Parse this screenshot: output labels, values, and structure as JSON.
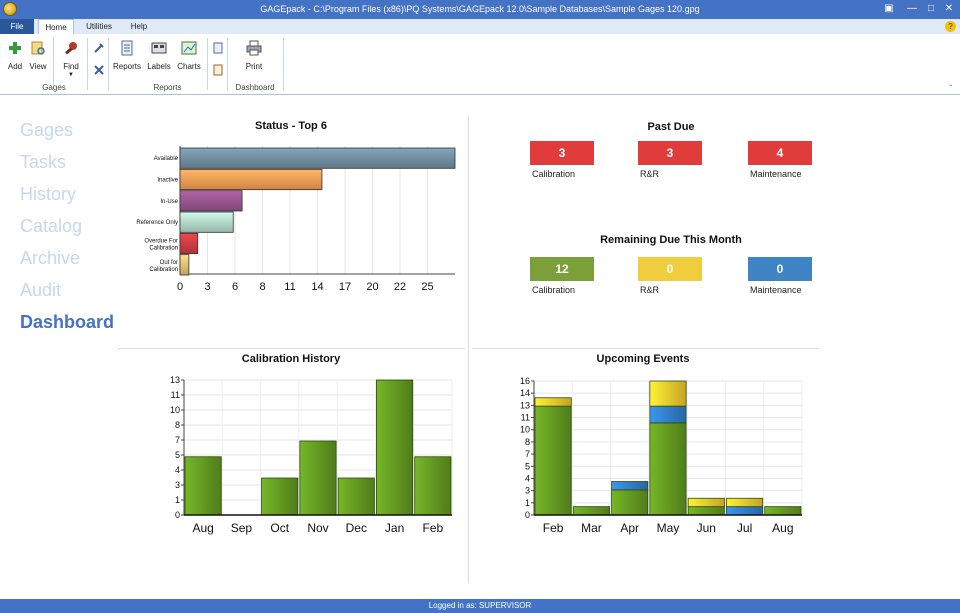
{
  "window": {
    "title": "GAGEpack - C:\\Program Files (x86)\\PQ Systems\\GAGEpack 12.0\\Sample Databases\\Sample Gages 120.gpg"
  },
  "menu": {
    "tabs": [
      "File",
      "Home",
      "Utilities",
      "Help"
    ]
  },
  "ribbon": {
    "add_label": "Add",
    "view_label": "View",
    "find_label": "Find",
    "reports_label": "Reports",
    "labels_label": "Labels",
    "charts_label": "Charts",
    "print_label": "Print",
    "groups": {
      "gages": "Gages",
      "reports": "Reports",
      "dashboard": "Dashboard"
    }
  },
  "nav": {
    "items": [
      "Gages",
      "Tasks",
      "History",
      "Catalog",
      "Archive",
      "Audit",
      "Dashboard"
    ],
    "active": "Dashboard"
  },
  "past_due": {
    "title": "Past Due",
    "tiles": [
      {
        "label": "Calibration",
        "value": "3",
        "color": "#e03c3c"
      },
      {
        "label": "R&R",
        "value": "3",
        "color": "#e03c3c"
      },
      {
        "label": "Maintenance",
        "value": "4",
        "color": "#e03c3c"
      }
    ]
  },
  "remaining_due": {
    "title": "Remaining Due This Month",
    "tiles": [
      {
        "label": "Calibration",
        "value": "12",
        "color": "#7ba03a"
      },
      {
        "label": "R&R",
        "value": "0",
        "color": "#efcd3c"
      },
      {
        "label": "Maintenance",
        "value": "0",
        "color": "#3f84c4"
      }
    ]
  },
  "status_bar": {
    "text": "Logged in as: SUPERVISOR"
  },
  "chart_data": [
    {
      "type": "bar",
      "orientation": "horizontal",
      "title": "Status - Top 6",
      "categories": [
        "Available",
        "Inactive",
        "In-Use",
        "Reference Only",
        "Overdue For Calibration",
        "Out for Calibration"
      ],
      "values": [
        31,
        16,
        7,
        6,
        2,
        1
      ],
      "colors": [
        "#6a8596",
        "#e8924f",
        "#8e4f86",
        "#a7c9bb",
        "#c0393e",
        "#d2b46c"
      ],
      "xticks": [
        "0",
        "3",
        "6",
        "8",
        "11",
        "14",
        "17",
        "20",
        "22",
        "25"
      ],
      "xlim": [
        0,
        31
      ]
    },
    {
      "type": "bar",
      "title": "Calibration History",
      "categories": [
        "Aug",
        "Sep",
        "Oct",
        "Nov",
        "Dec",
        "Jan",
        "Feb"
      ],
      "values": [
        6.3,
        0,
        4,
        8,
        4,
        14.6,
        6.3
      ],
      "yticks": [
        "0",
        "1",
        "3",
        "4",
        "5",
        "7",
        "8",
        "10",
        "11",
        "13"
      ],
      "ylim": [
        0,
        14.6
      ]
    },
    {
      "type": "bar",
      "stacked": true,
      "title": "Upcoming Events",
      "categories": [
        "Feb",
        "Mar",
        "Apr",
        "May",
        "Jun",
        "Jul",
        "Aug"
      ],
      "series": [
        {
          "name": "Calibration",
          "color": "#5e921f",
          "values": [
            13,
            1,
            3,
            11,
            1,
            0,
            1
          ]
        },
        {
          "name": "Maintenance",
          "color": "#3078c0",
          "values": [
            0,
            0,
            1,
            2,
            0,
            1,
            0
          ]
        },
        {
          "name": "R&R",
          "color": "#e6c22a",
          "values": [
            1,
            0,
            0,
            3,
            1,
            1,
            0
          ]
        }
      ],
      "yticks": [
        "0",
        "1",
        "3",
        "4",
        "5",
        "7",
        "8",
        "10",
        "11",
        "13",
        "14",
        "16"
      ],
      "ylim": [
        0,
        16
      ]
    }
  ]
}
